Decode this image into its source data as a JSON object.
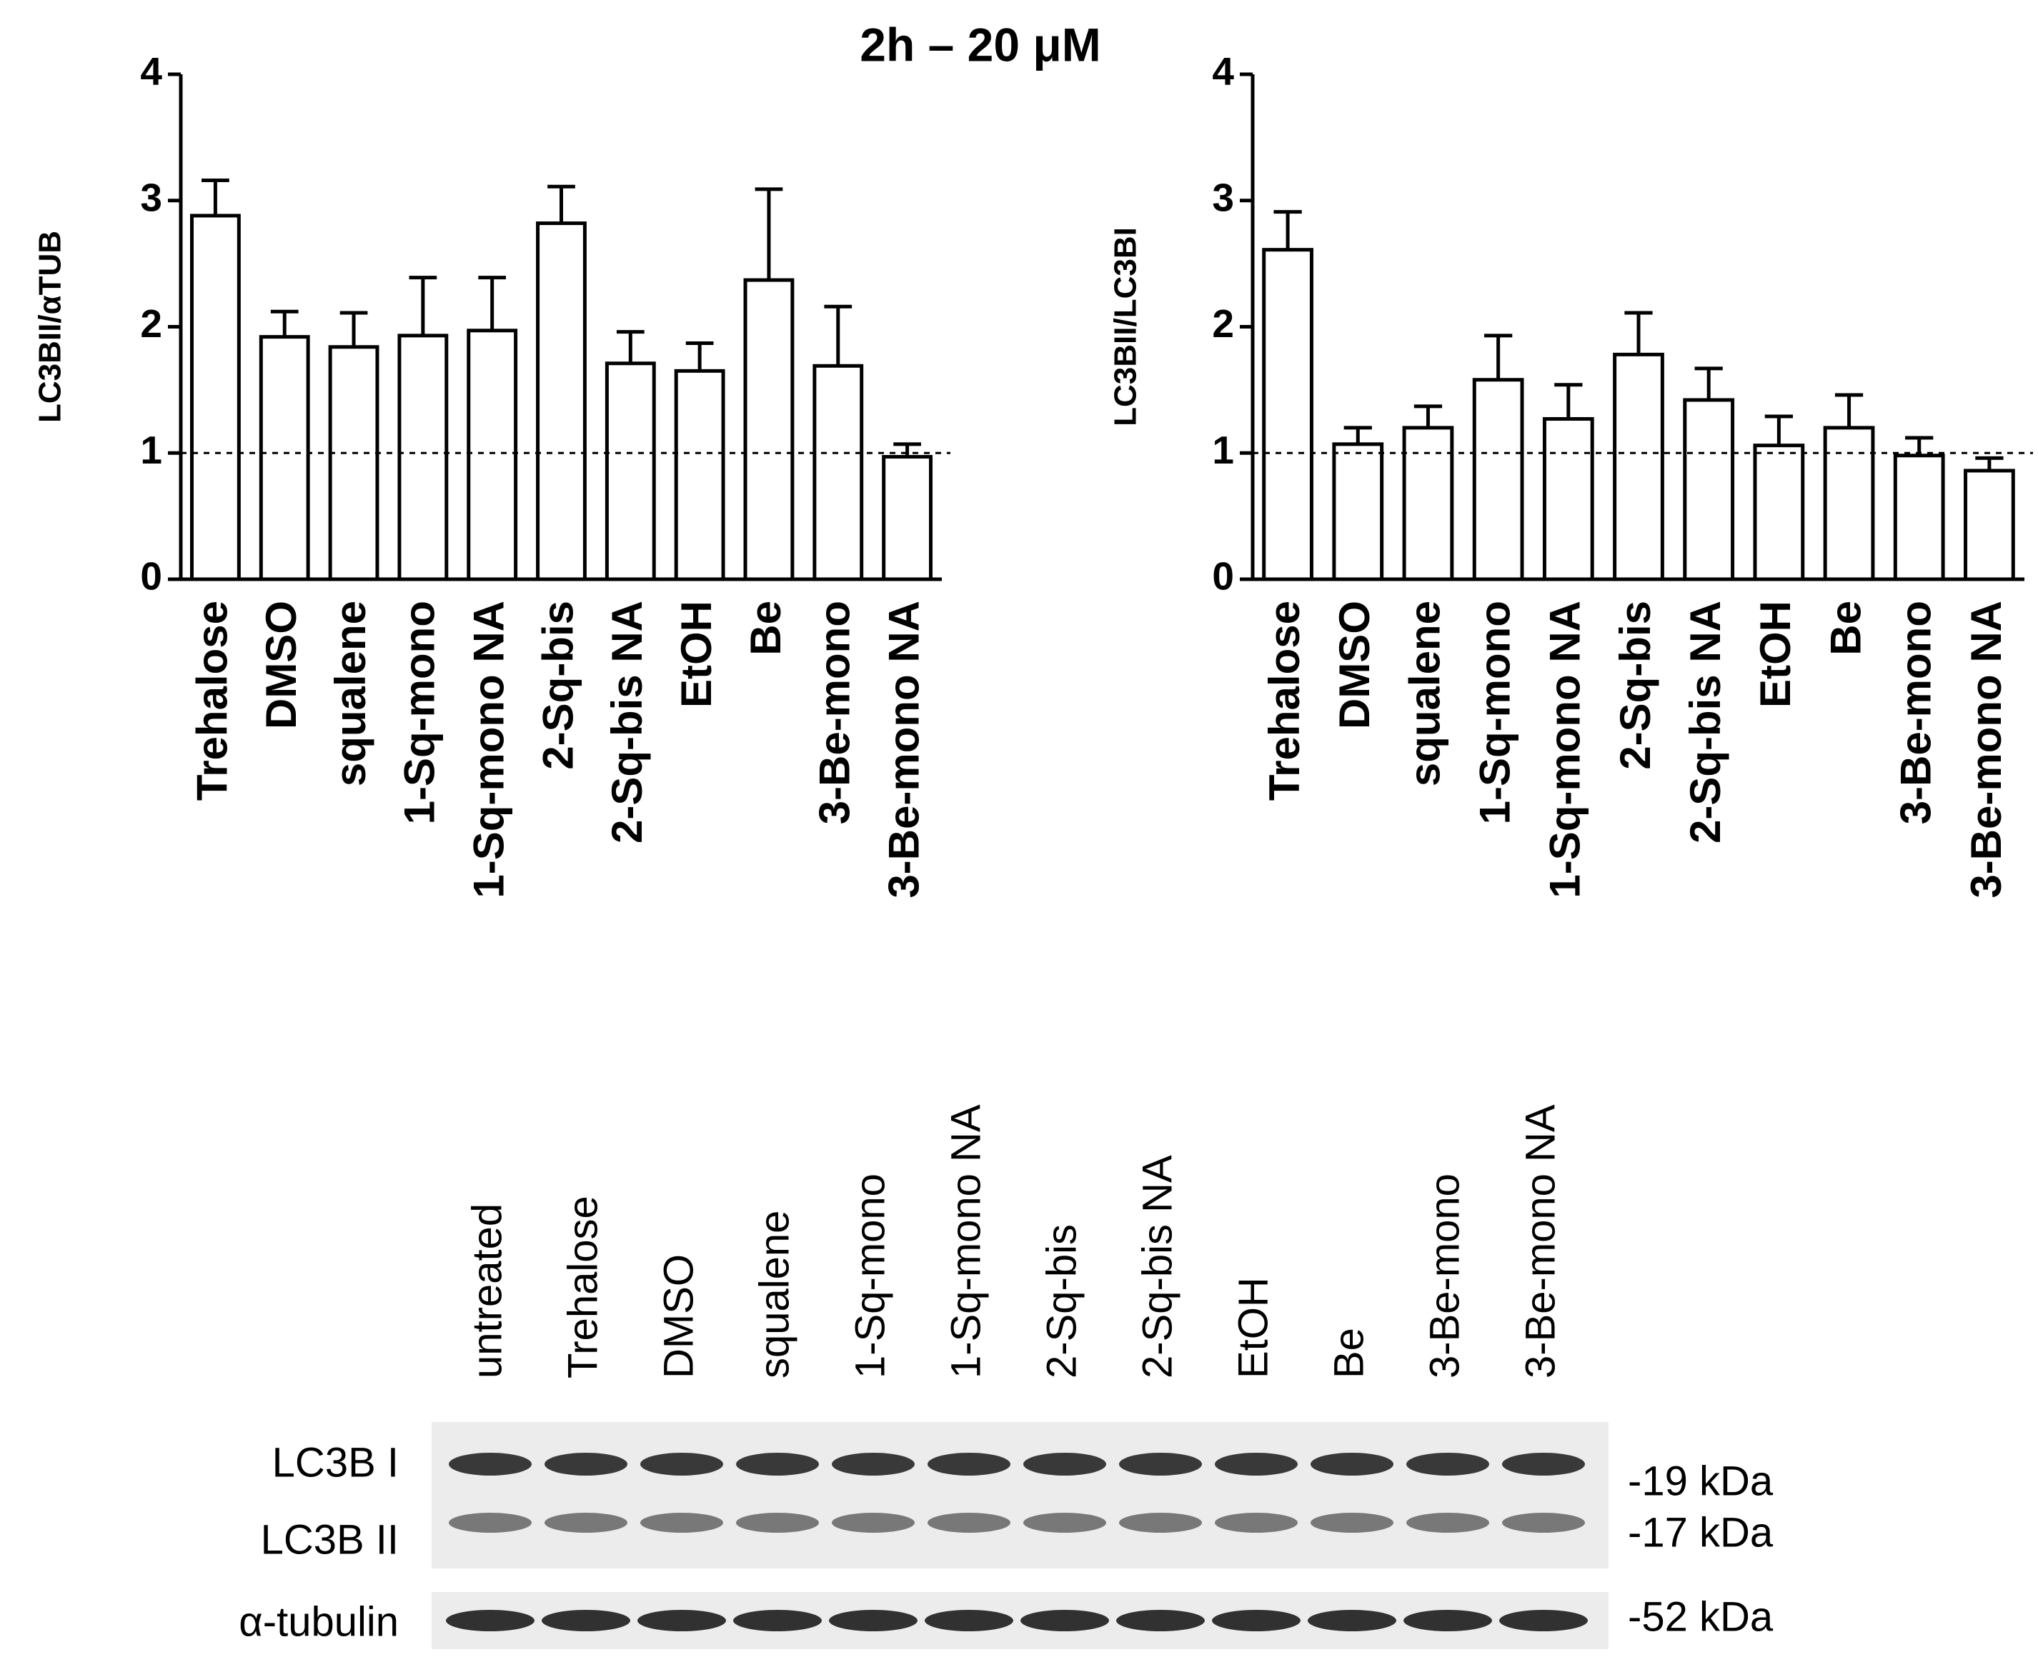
{
  "title": "2h – 20 μM",
  "chart_data": [
    {
      "type": "bar",
      "ylabel": "LC3BII/αTUB",
      "categories": [
        "Trehalose",
        "DMSO",
        "squalene",
        "1-Sq-mono",
        "1-Sq-mono NA",
        "2-Sq-bis",
        "2-Sq-bis NA",
        "EtOH",
        "Be",
        "3-Be-mono",
        "3-Be-mono NA"
      ],
      "values": [
        2.88,
        1.92,
        1.84,
        1.93,
        1.97,
        2.82,
        1.71,
        1.65,
        2.37,
        1.69,
        0.97
      ],
      "errors": [
        0.28,
        0.2,
        0.27,
        0.46,
        0.42,
        0.29,
        0.25,
        0.22,
        0.72,
        0.47,
        0.1
      ],
      "color": "#ffffff",
      "ylim": [
        0,
        4
      ],
      "yticks": [
        0,
        1,
        2,
        3,
        4
      ],
      "reference_line": 1
    },
    {
      "type": "bar",
      "ylabel": "LC3BII/LC3BI",
      "categories": [
        "Trehalose",
        "DMSO",
        "squalene",
        "1-Sq-mono",
        "1-Sq-mono NA",
        "2-Sq-bis",
        "2-Sq-bis NA",
        "EtOH",
        "Be",
        "3-Be-mono",
        "3-Be-mono NA"
      ],
      "values": [
        2.61,
        1.07,
        1.2,
        1.58,
        1.27,
        1.78,
        1.42,
        1.06,
        1.2,
        0.98,
        0.86
      ],
      "errors": [
        0.3,
        0.13,
        0.17,
        0.35,
        0.27,
        0.33,
        0.25,
        0.23,
        0.26,
        0.14,
        0.1
      ],
      "color": "#ffffff",
      "ylim": [
        0,
        4
      ],
      "yticks": [
        0,
        1,
        2,
        3,
        4
      ],
      "reference_line": 1
    }
  ],
  "blot": {
    "lanes": [
      "untreated",
      "Trehalose",
      "DMSO",
      "squalene",
      "1-Sq-mono",
      "1-Sq-mono NA",
      "2-Sq-bis",
      "2-Sq-bis NA",
      "EtOH",
      "Be",
      "3-Be-mono",
      "3-Be-mono NA"
    ],
    "bands": [
      "LC3B I",
      "LC3B II",
      "α-tubulin"
    ],
    "markers": [
      "-19 kDa",
      "-17 kDa",
      "-52 kDa"
    ]
  }
}
